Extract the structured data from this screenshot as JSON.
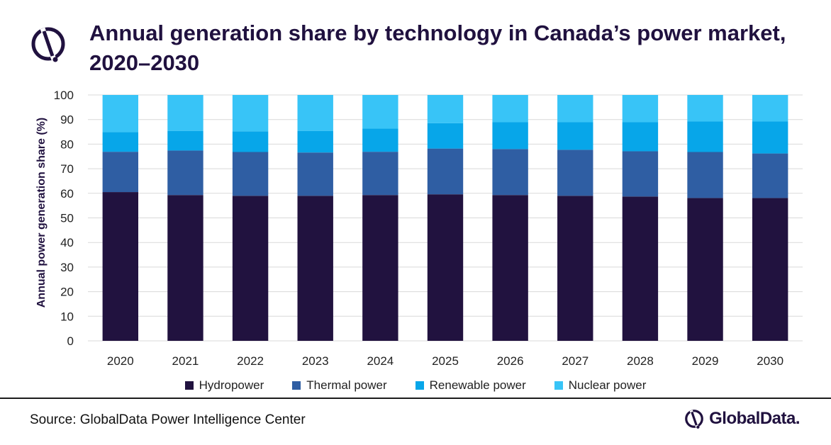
{
  "title": "Annual generation share by technology in Canada’s power market, 2020–2030",
  "source": "Source: GlobalData Power Intelligence Center",
  "brand": "GlobalData.",
  "colors": {
    "hydropower": "#21123f",
    "thermal": "#2f5ea3",
    "renewable": "#07a6e9",
    "nuclear": "#38c4f7",
    "title": "#20113f",
    "grid": "#d9d9d9"
  },
  "chart_data": {
    "type": "bar",
    "stacked": true,
    "title": "Annual generation share by technology in Canada’s power market, 2020–2030",
    "xlabel": "",
    "ylabel": "Annual power generation share (%)",
    "ylim": [
      0,
      100
    ],
    "yticks": [
      "0",
      "10",
      "20",
      "30",
      "40",
      "50",
      "60",
      "70",
      "80",
      "90",
      "100"
    ],
    "categories": [
      "2020",
      "2021",
      "2022",
      "2023",
      "2024",
      "2025",
      "2026",
      "2027",
      "2028",
      "2029",
      "2030"
    ],
    "series": [
      {
        "name": "Hydropower",
        "color": "#21123f",
        "values": [
          60.5,
          59.3,
          59.0,
          59.0,
          59.3,
          59.6,
          59.3,
          59.0,
          58.7,
          58.1,
          58.1
        ]
      },
      {
        "name": "Thermal power",
        "color": "#2f5ea3",
        "values": [
          16.4,
          18.1,
          17.8,
          17.6,
          17.6,
          18.6,
          18.7,
          18.7,
          18.4,
          18.7,
          18.1
        ]
      },
      {
        "name": "Renewable power",
        "color": "#07a6e9",
        "values": [
          8.0,
          8.0,
          8.4,
          8.8,
          9.4,
          10.3,
          10.9,
          11.2,
          11.8,
          12.4,
          13.0
        ]
      },
      {
        "name": "Nuclear power",
        "color": "#38c4f7",
        "values": [
          15.1,
          14.6,
          14.8,
          14.6,
          13.7,
          11.5,
          11.1,
          11.1,
          11.1,
          10.8,
          10.8
        ]
      }
    ],
    "legend_position": "bottom",
    "grid": true
  }
}
